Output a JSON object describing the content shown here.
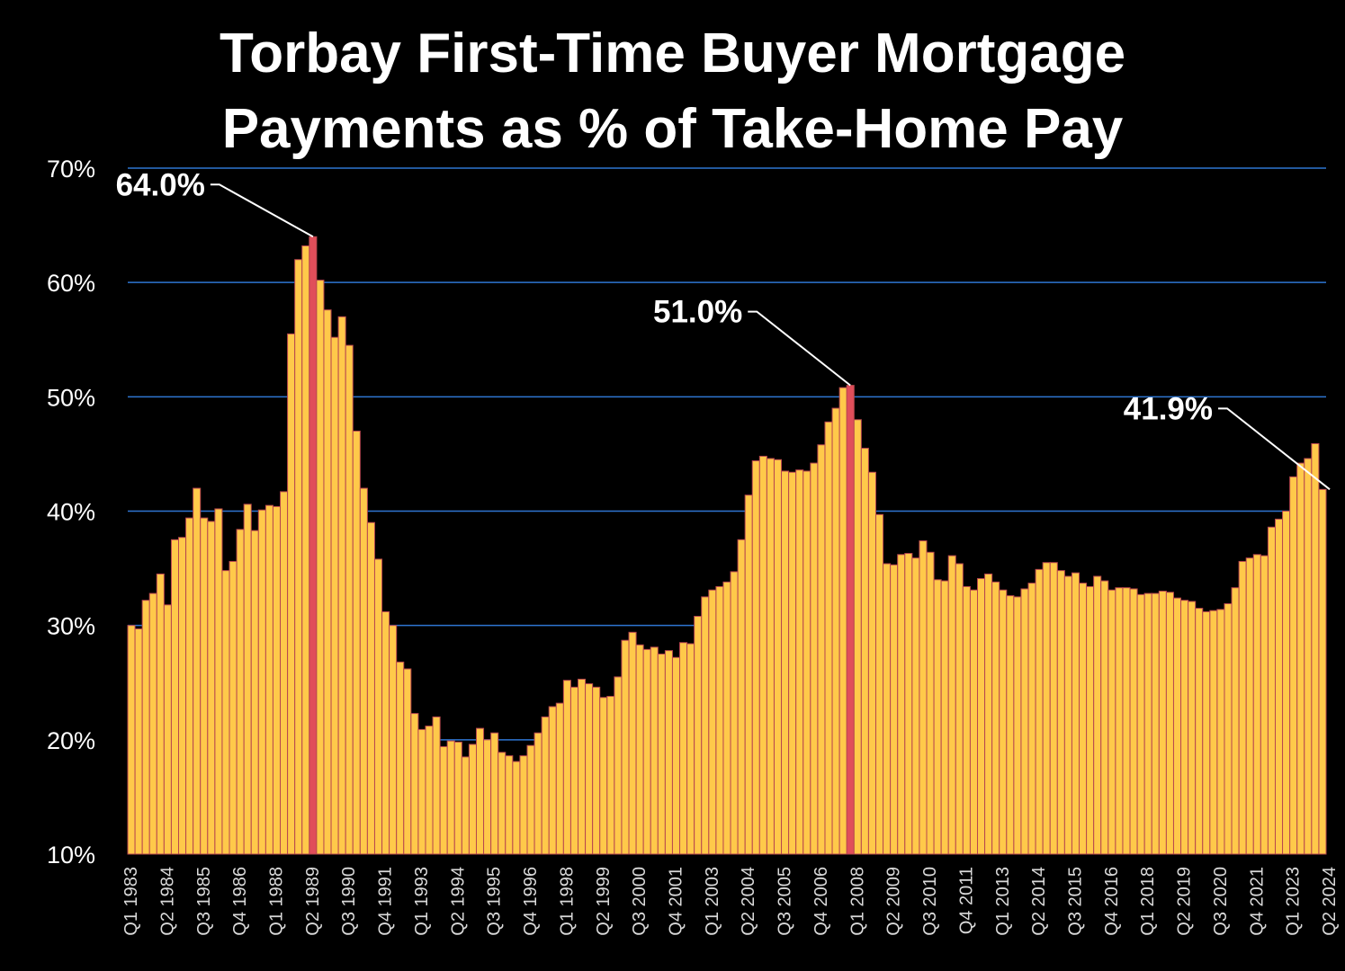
{
  "chart_data": {
    "type": "bar",
    "title": "Torbay First-Time Buyer Mortgage Payments as % of Take-Home Pay",
    "title_lines": [
      "Torbay First-Time Buyer Mortgage",
      "Payments as % of Take-Home Pay"
    ],
    "xlabel": "",
    "ylabel": "",
    "ylim": [
      10,
      70
    ],
    "y_ticks": [
      "10%",
      "20%",
      "30%",
      "40%",
      "50%",
      "60%",
      "70%"
    ],
    "y_tick_values": [
      10,
      20,
      30,
      40,
      50,
      60,
      70
    ],
    "grid": true,
    "legend": "none",
    "start_quarter": "Q1 1983",
    "end_quarter": "Q2 2024",
    "x_tick_labels": [
      "Q1 1983",
      "Q2 1984",
      "Q3 1985",
      "Q4 1986",
      "Q1 1988",
      "Q2 1989",
      "Q3 1990",
      "Q4 1991",
      "Q1 1993",
      "Q2 1994",
      "Q3 1995",
      "Q4 1996",
      "Q1 1998",
      "Q2 1999",
      "Q3 2000",
      "Q4 2001",
      "Q1 2003",
      "Q2 2004",
      "Q3 2005",
      "Q4 2006",
      "Q1 2008",
      "Q2 2009",
      "Q3 2010",
      "Q4 2011",
      "Q1 2013",
      "Q2 2014",
      "Q3 2015",
      "Q4 2016",
      "Q1 2018",
      "Q2 2019",
      "Q3 2020",
      "Q4 2021",
      "Q1 2023",
      "Q2 2024"
    ],
    "values": [
      30.0,
      29.7,
      32.2,
      32.8,
      34.5,
      31.8,
      37.5,
      37.7,
      39.4,
      42.0,
      39.4,
      39.1,
      40.2,
      34.8,
      35.6,
      38.4,
      40.6,
      38.3,
      40.1,
      40.5,
      40.4,
      41.7,
      55.5,
      62.0,
      63.2,
      64.0,
      60.2,
      57.6,
      55.2,
      57.0,
      54.5,
      47.0,
      42.0,
      39.0,
      35.8,
      31.2,
      30.0,
      26.8,
      26.2,
      22.3,
      20.9,
      21.2,
      22.0,
      19.4,
      19.9,
      19.8,
      18.5,
      19.6,
      21.0,
      20.0,
      20.6,
      18.9,
      18.6,
      18.1,
      18.6,
      19.5,
      20.6,
      22.0,
      22.9,
      23.2,
      25.2,
      24.6,
      25.3,
      24.9,
      24.6,
      23.7,
      23.8,
      25.5,
      28.7,
      29.4,
      28.3,
      27.9,
      28.1,
      27.5,
      27.8,
      27.2,
      28.5,
      28.4,
      30.8,
      32.5,
      33.1,
      33.4,
      33.8,
      34.7,
      37.5,
      41.4,
      44.4,
      44.8,
      44.6,
      44.5,
      43.5,
      43.4,
      43.6,
      43.5,
      44.2,
      45.8,
      47.8,
      49.0,
      50.8,
      51.0,
      48.0,
      45.5,
      43.4,
      39.7,
      35.4,
      35.3,
      36.2,
      36.3,
      35.9,
      37.4,
      36.4,
      34.0,
      33.9,
      36.1,
      35.4,
      33.4,
      33.1,
      34.1,
      34.5,
      33.8,
      33.1,
      32.6,
      32.5,
      33.2,
      33.7,
      34.9,
      35.5,
      35.5,
      34.8,
      34.3,
      34.6,
      33.7,
      33.4,
      34.3,
      33.9,
      33.1,
      33.3,
      33.3,
      33.2,
      32.7,
      32.8,
      32.8,
      33.0,
      32.9,
      32.4,
      32.2,
      32.1,
      31.5,
      31.2,
      31.3,
      31.4,
      31.9,
      33.3,
      35.6,
      35.9,
      36.2,
      36.1,
      38.6,
      39.3,
      40.0,
      43.0,
      44.2,
      44.6,
      45.9,
      41.9
    ],
    "highlighted": [
      {
        "quarter": "Q2 1989",
        "value": 64.0,
        "label": "64.0%"
      },
      {
        "quarter": "Q4 2007",
        "value": 51.0,
        "label": "51.0%"
      },
      {
        "quarter": "Q2 2024",
        "value": 41.9,
        "label": "41.9%"
      }
    ],
    "highlight_indices": [
      25,
      99,
      165
    ]
  },
  "colors": {
    "background": "#000000",
    "bar_fill": "#FFC94A",
    "bar_stroke": "#B8474E",
    "highlight_fill": "#E04E5A",
    "gridline": "#2E75D1",
    "text": "#FFFFFF",
    "tick_text": "#D9D9D9"
  }
}
